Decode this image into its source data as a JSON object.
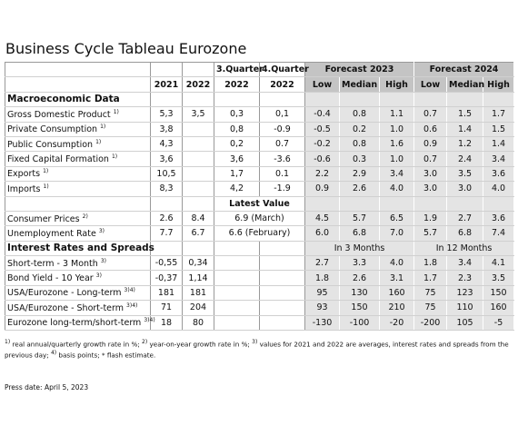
{
  "title": "Business Cycle Tableau Eurozone",
  "table": {
    "header": {
      "quarter_3": "3.Quarter",
      "quarter_4": "4.Quarter",
      "forecast_2023": "Forecast 2023",
      "forecast_2024": "Forecast 2024",
      "years": [
        "2021",
        "2022",
        "2022",
        "2022"
      ],
      "forecast_cols": [
        "Low",
        "Median",
        "High",
        "Low",
        "Median",
        "High"
      ]
    },
    "blocks": [
      {
        "heading": "Macroeconomic Data",
        "rows": [
          {
            "label": "Gross Domestic Product",
            "note": "1)",
            "values": [
              "5,3",
              "3,5",
              "0,3",
              "0,1"
            ],
            "forecast": [
              "-0.4",
              "0.8",
              "1.1",
              "0.7",
              "1.5",
              "1.7"
            ]
          },
          {
            "label": "Private Consumption",
            "note": "1)",
            "values": [
              "3,8",
              null,
              "0,8",
              "-0.9"
            ],
            "forecast": [
              "-0.5",
              "0.2",
              "1.0",
              "0.6",
              "1.4",
              "1.5"
            ]
          },
          {
            "label": "Public Consumption",
            "note": "1)",
            "values": [
              "4,3",
              null,
              "0,2",
              "0.7"
            ],
            "forecast": [
              "-0.2",
              "0.8",
              "1.6",
              "0.9",
              "1.2",
              "1.4"
            ]
          },
          {
            "label": "Fixed Capital Formation",
            "note": "1)",
            "values": [
              "3,6",
              null,
              "3,6",
              "-3.6"
            ],
            "forecast": [
              "-0.6",
              "0.3",
              "1.0",
              "0.7",
              "2.4",
              "3.4"
            ]
          },
          {
            "label": "Exports",
            "note": "1)",
            "values": [
              "10,5",
              null,
              "1,7",
              "0.1"
            ],
            "forecast": [
              "2.2",
              "2.9",
              "3.4",
              "3.0",
              "3.5",
              "3.6"
            ]
          },
          {
            "label": "Imports",
            "note": "1)",
            "values": [
              "8,3",
              null,
              "4,2",
              "-1.9"
            ],
            "forecast": [
              "0.9",
              "2.6",
              "4.0",
              "3.0",
              "3.0",
              "4.0"
            ]
          }
        ]
      },
      {
        "heading_center": "Latest Value",
        "rows": [
          {
            "label": "Consumer Prices",
            "note": "2)",
            "values": [
              "2.6",
              "8.4"
            ],
            "latest": "6.9 (March)",
            "forecast": [
              "4.5",
              "5.7",
              "6.5",
              "1.9",
              "2.7",
              "3.6"
            ]
          },
          {
            "label": "Unemployment Rate",
            "note": "3)",
            "values": [
              "7.7",
              "6.7"
            ],
            "latest": "6.6 (February)",
            "forecast": [
              "6.0",
              "6.8",
              "7.0",
              "5.7",
              "6.8",
              "7.4"
            ]
          }
        ]
      },
      {
        "heading": "Interest Rates and Spreads",
        "period_2023": "In 3 Months",
        "period_2024": "In 12 Months",
        "rows": [
          {
            "label": "Short-term - 3 Month",
            "note": "3)",
            "values": [
              "-0,55",
              "0,34"
            ],
            "forecast": [
              "2.7",
              "3.3",
              "4.0",
              "1.8",
              "3.4",
              "4.1"
            ]
          },
          {
            "label": "Bond Yield - 10 Year",
            "note": "3)",
            "values": [
              "-0,37",
              "1,14"
            ],
            "forecast": [
              "1.8",
              "2.6",
              "3.1",
              "1.7",
              "2.3",
              "3.5"
            ]
          },
          {
            "label": "USA/Eurozone - Long-term",
            "note": "3)4)",
            "values": [
              "181",
              "181"
            ],
            "forecast": [
              "95",
              "130",
              "160",
              "75",
              "123",
              "150"
            ]
          },
          {
            "label": "USA/Eurozone - Short-term",
            "note": "3)4)",
            "values": [
              "71",
              "204"
            ],
            "forecast": [
              "93",
              "150",
              "210",
              "75",
              "110",
              "160"
            ]
          },
          {
            "label": "Eurozone long-term/short-term",
            "note": "3)4)",
            "values": [
              "18",
              "80"
            ],
            "forecast": [
              "-130",
              "-100",
              "-20",
              "-200",
              "105",
              "-5"
            ]
          }
        ]
      }
    ]
  },
  "footnotes": [
    {
      "mark": "1)",
      "text": "real annual/quarterly growth rate in %;"
    },
    {
      "mark": "2)",
      "text": "year-on-year growth rate in %;"
    },
    {
      "mark": "3)",
      "text": "values for 2021 and 2022 are averages, interest rates and spreads from the previous day;"
    },
    {
      "mark": "4)",
      "text": "basis points; * flash estimate."
    }
  ],
  "press_date": "Press date: April 5, 2023"
}
